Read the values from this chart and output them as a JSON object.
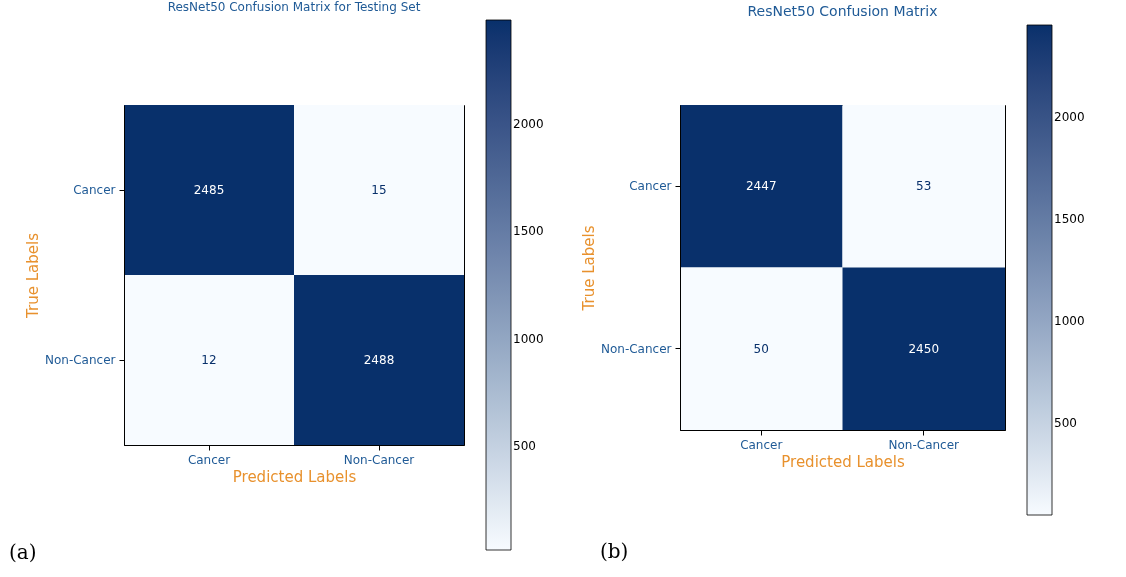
{
  "chart_data": [
    {
      "type": "heatmap",
      "title": "ResNet50 Confusion Matrix for Testing Set",
      "xlabel": "Predicted Labels",
      "ylabel": "True Labels",
      "categories": [
        "Cancer",
        "Non-Cancer"
      ],
      "y_categories": [
        "Cancer",
        "Non-Cancer"
      ],
      "cells": [
        [
          2485,
          15
        ],
        [
          12,
          2488
        ]
      ],
      "clim": [
        12,
        2488
      ],
      "cticks": [
        500,
        1000,
        1500,
        2000
      ],
      "data_labels": true,
      "annotations": [
        "(a)"
      ]
    },
    {
      "type": "heatmap",
      "title": "ResNet50 Confusion Matrix",
      "xlabel": "Predicted Labels",
      "ylabel": "True Labels",
      "categories": [
        "Cancer",
        "Non-Cancer"
      ],
      "y_categories": [
        "Cancer",
        "Non-Cancer"
      ],
      "cells": [
        [
          2447,
          53
        ],
        [
          50,
          2450
        ]
      ],
      "clim": [
        50,
        2450
      ],
      "cticks": [
        500,
        1000,
        1500,
        2000
      ],
      "data_labels": true,
      "annotations": [
        "(b)"
      ]
    }
  ]
}
